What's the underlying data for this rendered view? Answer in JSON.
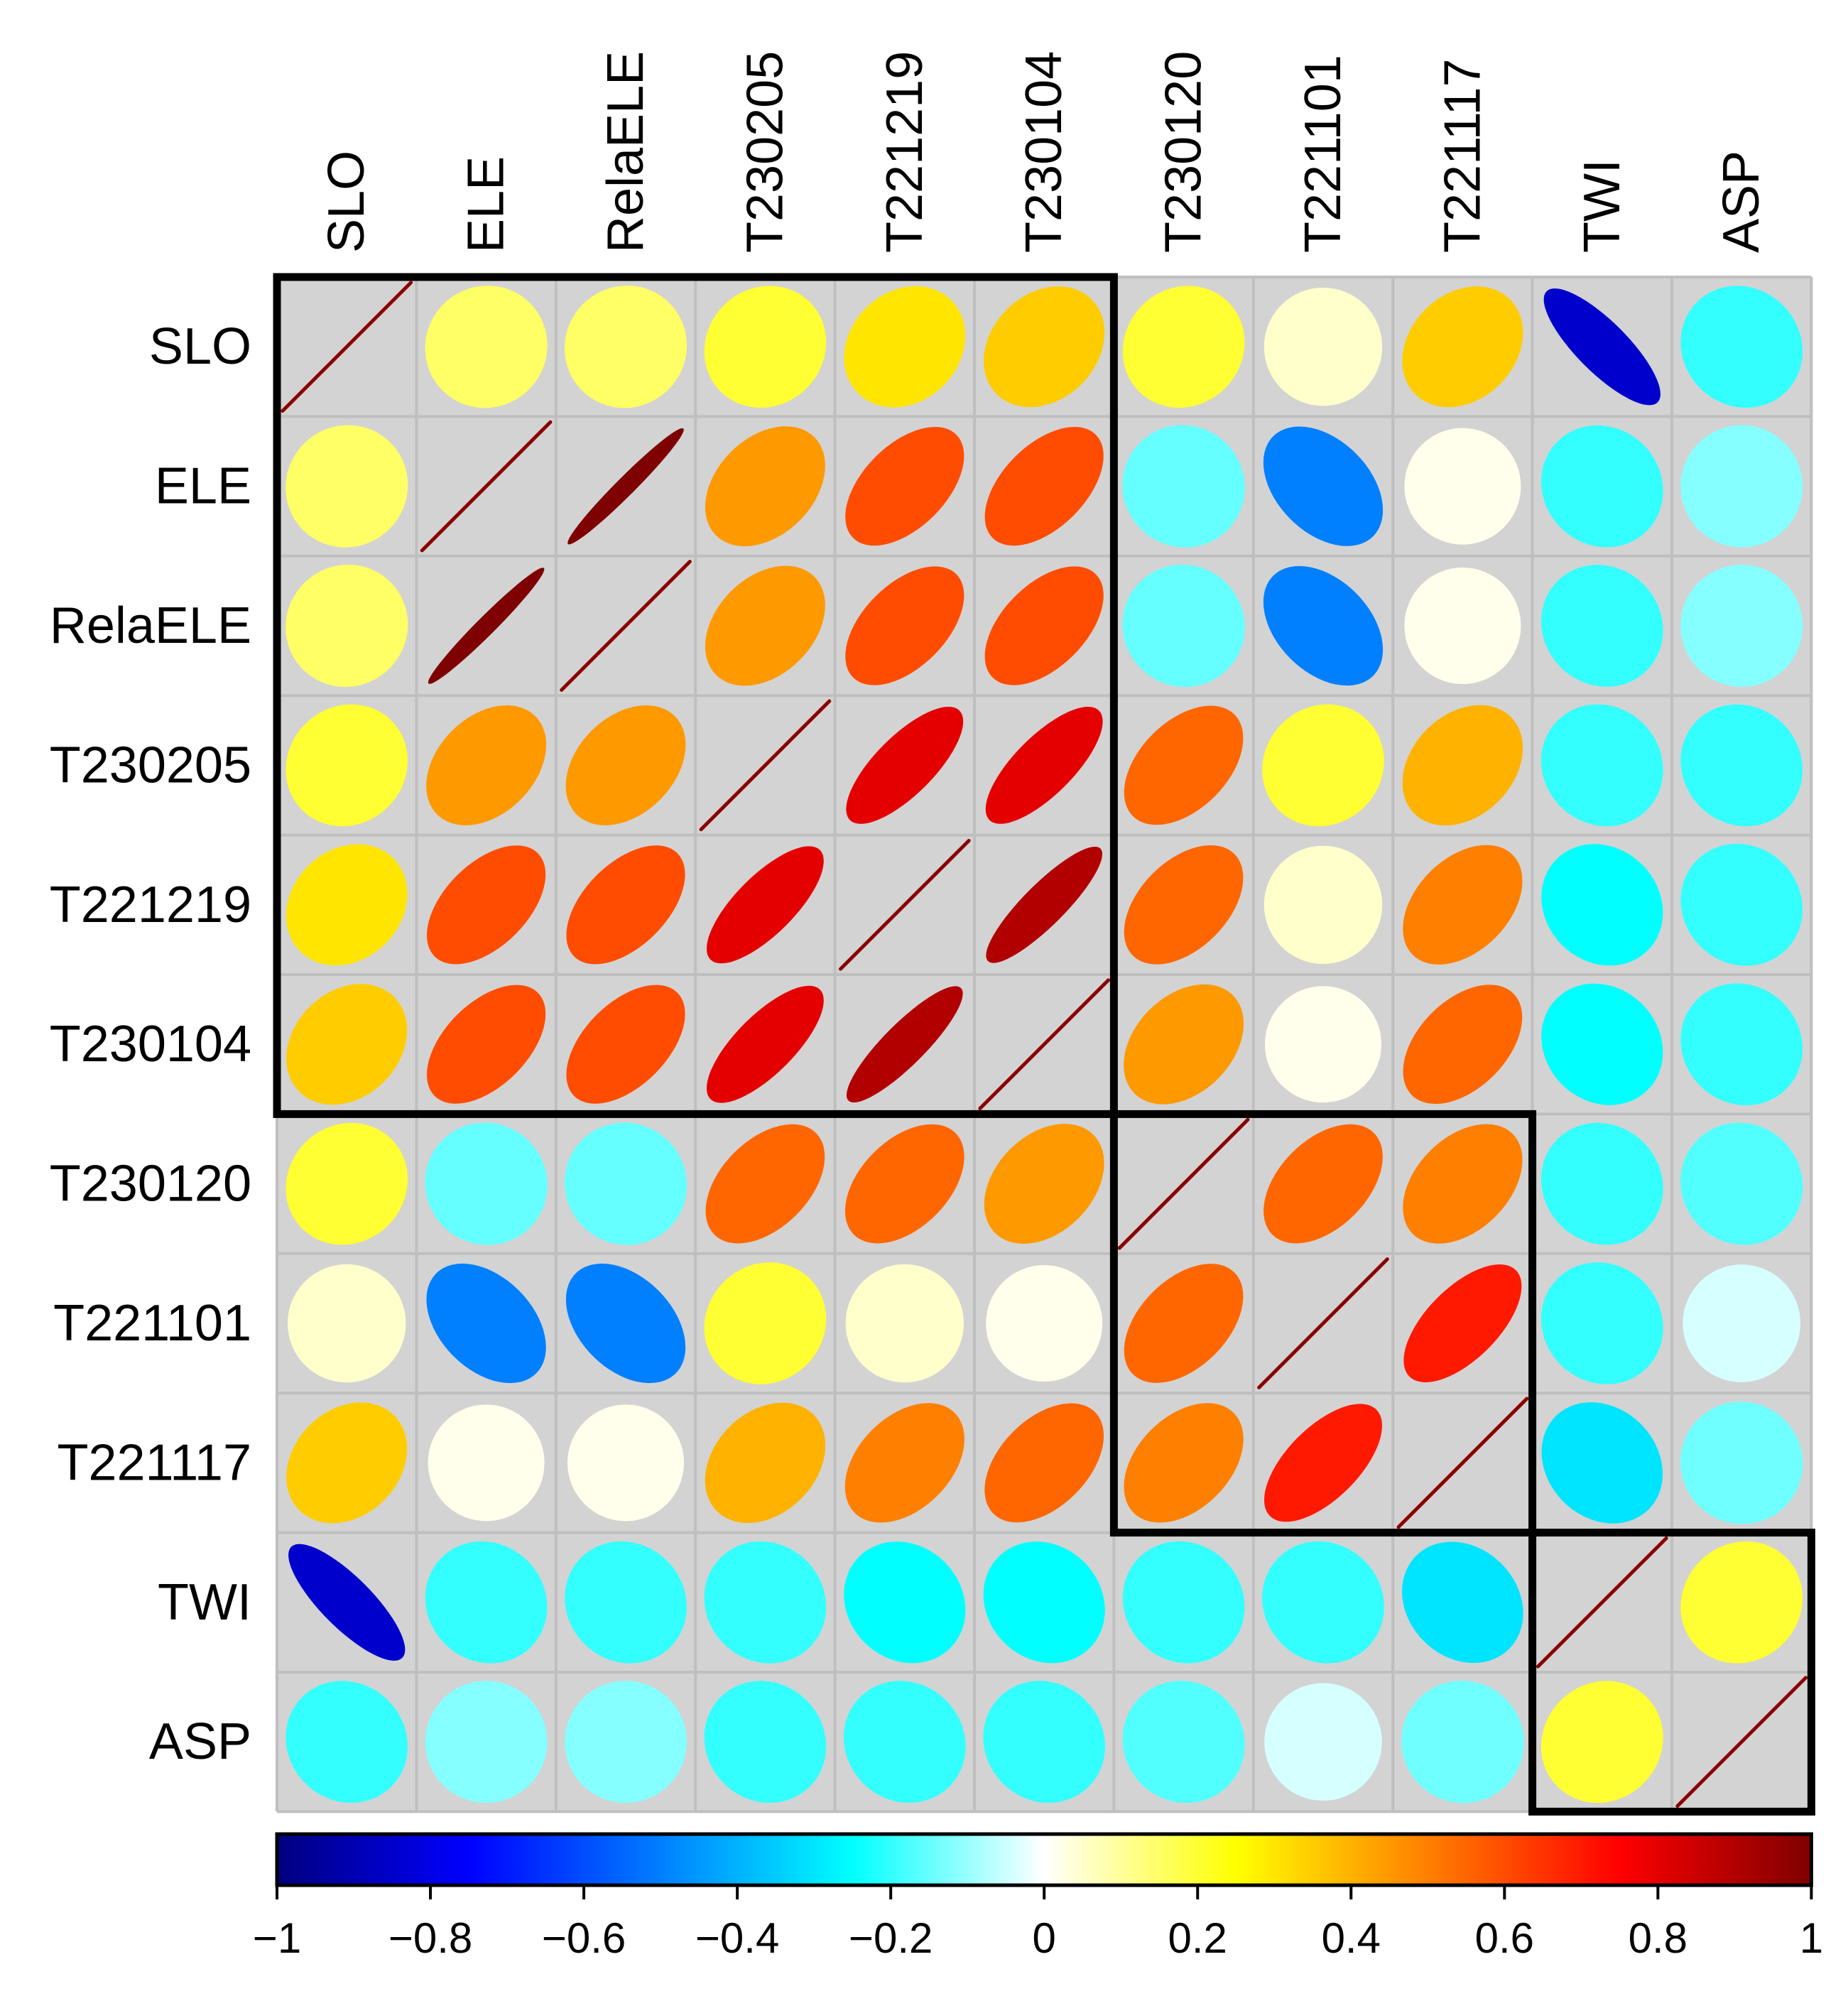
{
  "chart_data": {
    "type": "heatmap",
    "subtype": "correlation-ellipse-matrix",
    "title": "",
    "variables": [
      "SLO",
      "ELE",
      "RelaELE",
      "T230205",
      "T221219",
      "T230104",
      "T230120",
      "T221101",
      "T221117",
      "TWI",
      "ASP"
    ],
    "matrix": [
      [
        1.0,
        0.15,
        0.15,
        0.2,
        0.3,
        0.35,
        0.2,
        0.05,
        0.35,
        -0.85,
        -0.2
      ],
      [
        0.15,
        1.0,
        1.0,
        0.45,
        0.6,
        0.6,
        -0.15,
        -0.5,
        0.02,
        -0.2,
        -0.12
      ],
      [
        0.15,
        1.0,
        1.0,
        0.45,
        0.6,
        0.6,
        -0.15,
        -0.5,
        0.02,
        -0.2,
        -0.12
      ],
      [
        0.2,
        0.45,
        0.45,
        1.0,
        0.8,
        0.8,
        0.55,
        0.2,
        0.4,
        -0.2,
        -0.2
      ],
      [
        0.3,
        0.6,
        0.6,
        0.8,
        1.0,
        0.9,
        0.55,
        0.05,
        0.5,
        -0.25,
        -0.2
      ],
      [
        0.35,
        0.6,
        0.6,
        0.8,
        0.9,
        1.0,
        0.45,
        0.02,
        0.55,
        -0.25,
        -0.2
      ],
      [
        0.2,
        -0.15,
        -0.15,
        0.55,
        0.55,
        0.45,
        1.0,
        0.55,
        0.5,
        -0.2,
        -0.17
      ],
      [
        0.05,
        -0.5,
        -0.5,
        0.2,
        0.05,
        0.02,
        0.55,
        1.0,
        0.7,
        -0.2,
        -0.04
      ],
      [
        0.35,
        0.02,
        0.02,
        0.4,
        0.5,
        0.55,
        0.5,
        0.7,
        1.0,
        -0.3,
        -0.14
      ],
      [
        -0.85,
        -0.2,
        -0.2,
        -0.2,
        -0.25,
        -0.25,
        -0.2,
        -0.2,
        -0.3,
        1.0,
        0.2
      ],
      [
        -0.2,
        -0.12,
        -0.12,
        -0.2,
        -0.2,
        -0.2,
        -0.17,
        -0.04,
        -0.14,
        0.2,
        1.0
      ]
    ],
    "cluster_boxes": [
      {
        "from": "SLO",
        "to": "T230104"
      },
      {
        "from": "T230120",
        "to": "T221117"
      },
      {
        "from": "TWI",
        "to": "ASP"
      }
    ],
    "colorbar": {
      "range": [
        -1,
        1
      ],
      "ticks": [
        -1,
        -0.8,
        -0.6,
        -0.4,
        -0.2,
        0,
        0.2,
        0.4,
        0.6,
        0.8,
        1
      ],
      "tick_labels": [
        "−1",
        "−0.8",
        "−0.6",
        "−0.4",
        "−0.2",
        "0",
        "0.2",
        "0.4",
        "0.6",
        "0.8",
        "1"
      ],
      "colors": [
        "#00007f",
        "#0000ff",
        "#007fff",
        "#00ffff",
        "#ffffff",
        "#ffff00",
        "#ff7f00",
        "#ff0000",
        "#7f0000"
      ]
    },
    "diagonal_color": "#8b0000",
    "cell_background": "#d3d3d3",
    "grid_color": "#bfbfbf",
    "box_color": "#000000"
  }
}
